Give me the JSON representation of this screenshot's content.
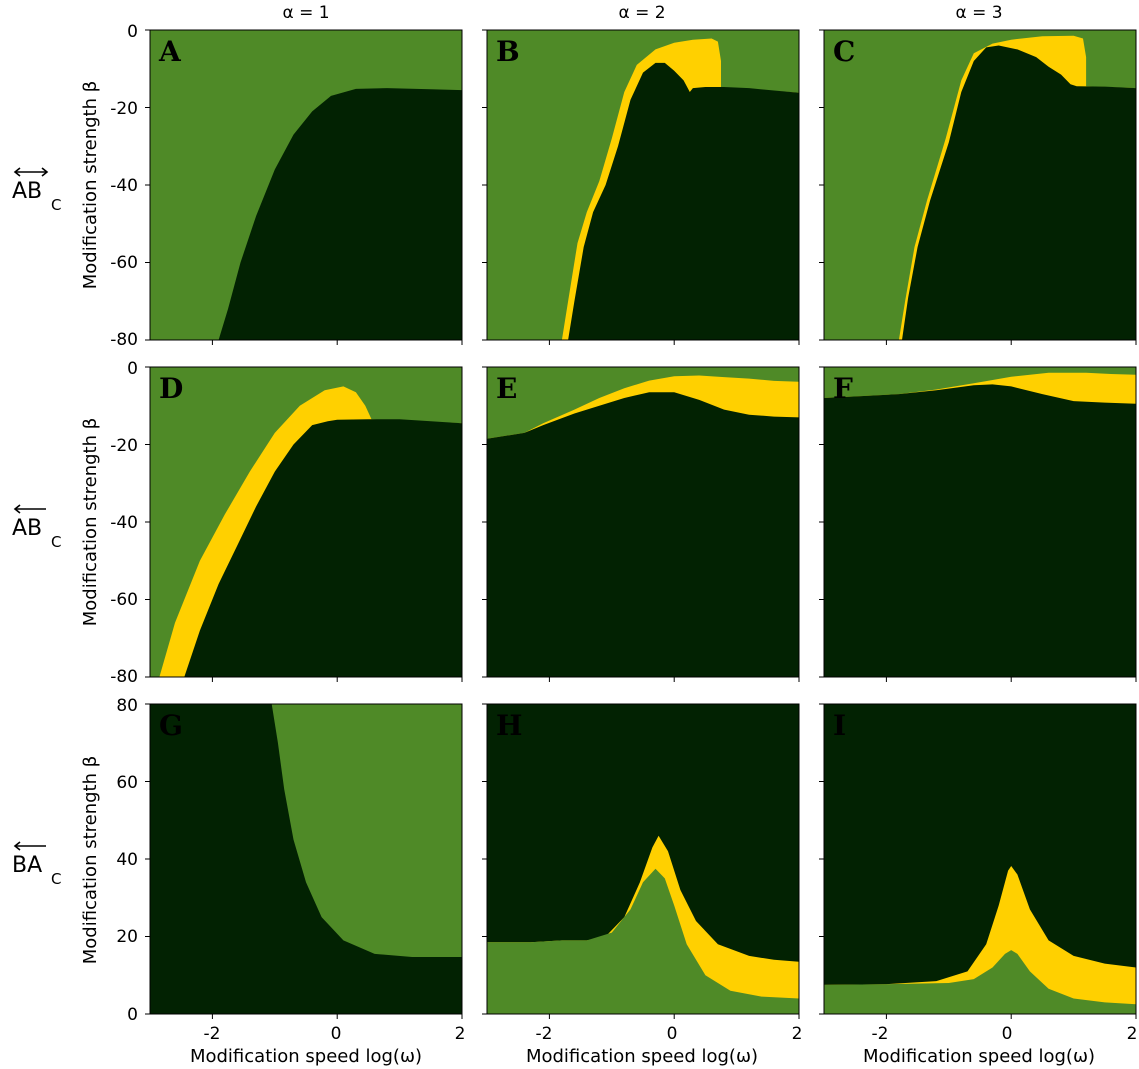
{
  "colors": {
    "light_green": "#4f8a27",
    "dark_green": "#022202",
    "yellow": "#ffd000",
    "background": "#ffffff"
  },
  "column_titles": [
    "α = 1",
    "α = 2",
    "α = 3"
  ],
  "row_labels": [
    {
      "main": "AB",
      "sub": "C",
      "arrow": "bidirectional"
    },
    {
      "main": "AB",
      "sub": "C",
      "arrow": "left"
    },
    {
      "main": "BA",
      "sub": "C",
      "arrow": "left"
    }
  ],
  "ylabel": "Modification strength β",
  "xlabel": "Modification speed log(ω)",
  "x_ticks": [
    "-2",
    "0",
    "2"
  ],
  "y_ticks_rows": [
    [
      "0",
      "-20",
      "-40",
      "-60",
      "-80"
    ],
    [
      "0",
      "-20",
      "-40",
      "-60",
      "-80"
    ],
    [
      "80",
      "60",
      "40",
      "20",
      "0"
    ]
  ],
  "chart_data": {
    "type": "area",
    "layout": "3x3 grid of region maps",
    "xlim": [
      -3,
      2
    ],
    "x_ticks": [
      -2,
      0,
      2
    ],
    "panels": [
      {
        "letter": "A",
        "ylim": [
          -80,
          0
        ],
        "base": "light",
        "lower": [
          [
            -3,
            -80
          ],
          [
            -1.9,
            -80
          ],
          [
            -1.75,
            -72
          ],
          [
            -1.55,
            -60
          ],
          [
            -1.3,
            -48
          ],
          [
            -1,
            -36
          ],
          [
            -0.7,
            -27
          ],
          [
            -0.4,
            -21
          ],
          [
            -0.1,
            -17
          ],
          [
            0.3,
            -15.2
          ],
          [
            0.8,
            -15
          ],
          [
            1.5,
            -15.3
          ],
          [
            2,
            -15.5
          ]
        ],
        "upper": null
      },
      {
        "letter": "B",
        "ylim": [
          -80,
          0
        ],
        "base": "light",
        "lower": [
          [
            -3,
            -80
          ],
          [
            -1.7,
            -80
          ],
          [
            -1.6,
            -70
          ],
          [
            -1.45,
            -56
          ],
          [
            -1.3,
            -47
          ],
          [
            -1.1,
            -40
          ],
          [
            -0.9,
            -30
          ],
          [
            -0.7,
            -18
          ],
          [
            -0.5,
            -11
          ],
          [
            -0.3,
            -8.5
          ],
          [
            -0.15,
            -8.5
          ],
          [
            0,
            -10.5
          ],
          [
            0.15,
            -13
          ],
          [
            0.25,
            -16
          ],
          [
            0.3,
            -15
          ],
          [
            0.5,
            -14.7
          ],
          [
            0.8,
            -14.7
          ],
          [
            1.2,
            -15
          ],
          [
            1.6,
            -15.6
          ],
          [
            2,
            -16.2
          ]
        ],
        "upper": [
          [
            -3,
            -80
          ],
          [
            -1.8,
            -80
          ],
          [
            -1.7,
            -70
          ],
          [
            -1.55,
            -55
          ],
          [
            -1.4,
            -47
          ],
          [
            -1.2,
            -39
          ],
          [
            -1,
            -28
          ],
          [
            -0.8,
            -16
          ],
          [
            -0.6,
            -9
          ],
          [
            -0.3,
            -5
          ],
          [
            0,
            -3.3
          ],
          [
            0.3,
            -2.5
          ],
          [
            0.6,
            -2.2
          ],
          [
            0.7,
            -3
          ],
          [
            0.75,
            -8
          ],
          [
            0.75,
            -14.7
          ],
          [
            2,
            -16.2
          ]
        ]
      },
      {
        "letter": "C",
        "ylim": [
          -80,
          0
        ],
        "base": "light",
        "lower": [
          [
            -3,
            -80
          ],
          [
            -1.75,
            -80
          ],
          [
            -1.65,
            -69
          ],
          [
            -1.5,
            -56
          ],
          [
            -1.3,
            -44
          ],
          [
            -1,
            -29
          ],
          [
            -0.8,
            -16
          ],
          [
            -0.6,
            -8
          ],
          [
            -0.4,
            -4.5
          ],
          [
            -0.2,
            -4
          ],
          [
            0.1,
            -5
          ],
          [
            0.4,
            -7
          ],
          [
            0.6,
            -9.5
          ],
          [
            0.8,
            -11.5
          ],
          [
            0.95,
            -14
          ],
          [
            1.05,
            -14.5
          ],
          [
            1.5,
            -14.6
          ],
          [
            2,
            -15
          ]
        ],
        "upper": [
          [
            -3,
            -80
          ],
          [
            -1.8,
            -80
          ],
          [
            -1.7,
            -70
          ],
          [
            -1.55,
            -56
          ],
          [
            -1.35,
            -44
          ],
          [
            -1.05,
            -28
          ],
          [
            -0.8,
            -13
          ],
          [
            -0.6,
            -6
          ],
          [
            -0.3,
            -3.5
          ],
          [
            0,
            -2.5
          ],
          [
            0.5,
            -1.6
          ],
          [
            1,
            -1.5
          ],
          [
            1.15,
            -2.2
          ],
          [
            1.2,
            -7
          ],
          [
            1.2,
            -14.5
          ],
          [
            2,
            -15
          ]
        ]
      },
      {
        "letter": "D",
        "ylim": [
          -80,
          0
        ],
        "base": "light",
        "lower": [
          [
            -3,
            -80
          ],
          [
            -2.45,
            -80
          ],
          [
            -2.2,
            -68
          ],
          [
            -1.9,
            -56
          ],
          [
            -1.6,
            -46
          ],
          [
            -1.3,
            -36
          ],
          [
            -1,
            -27
          ],
          [
            -0.7,
            -20
          ],
          [
            -0.4,
            -15
          ],
          [
            -0.15,
            -14
          ],
          [
            0,
            -13.6
          ],
          [
            0.5,
            -13.5
          ],
          [
            1,
            -13.5
          ],
          [
            1.5,
            -14
          ],
          [
            2,
            -14.5
          ]
        ],
        "upper": [
          [
            -3,
            -80
          ],
          [
            -2.85,
            -80
          ],
          [
            -2.6,
            -66
          ],
          [
            -2.2,
            -50
          ],
          [
            -1.8,
            -38
          ],
          [
            -1.4,
            -27
          ],
          [
            -1,
            -17
          ],
          [
            -0.6,
            -10
          ],
          [
            -0.2,
            -6
          ],
          [
            0.1,
            -5
          ],
          [
            0.3,
            -6.5
          ],
          [
            0.45,
            -10
          ],
          [
            0.55,
            -13.5
          ],
          [
            2,
            -14.5
          ]
        ]
      },
      {
        "letter": "E",
        "ylim": [
          -80,
          0
        ],
        "base": "light",
        "lower": [
          [
            -3,
            -18.5
          ],
          [
            -2.4,
            -17
          ],
          [
            -2.1,
            -15
          ],
          [
            -1.6,
            -12
          ],
          [
            -1.2,
            -10
          ],
          [
            -0.8,
            -8
          ],
          [
            -0.4,
            -6.5
          ],
          [
            0,
            -6.5
          ],
          [
            0.4,
            -8.5
          ],
          [
            0.8,
            -11
          ],
          [
            1.2,
            -12.3
          ],
          [
            1.6,
            -12.8
          ],
          [
            2,
            -13
          ]
        ],
        "upper": [
          [
            -3,
            -18.5
          ],
          [
            -2.4,
            -17
          ],
          [
            -2.1,
            -14.5
          ],
          [
            -1.6,
            -11
          ],
          [
            -1.2,
            -8
          ],
          [
            -0.8,
            -5.5
          ],
          [
            -0.4,
            -3.5
          ],
          [
            0,
            -2.4
          ],
          [
            0.4,
            -2.2
          ],
          [
            0.8,
            -2.6
          ],
          [
            1.2,
            -3
          ],
          [
            1.6,
            -3.6
          ],
          [
            2,
            -3.8
          ]
        ]
      },
      {
        "letter": "F",
        "ylim": [
          -80,
          0
        ],
        "base": "light",
        "lower": [
          [
            -3,
            -8
          ],
          [
            -2.4,
            -7.5
          ],
          [
            -1.8,
            -7
          ],
          [
            -1.2,
            -6
          ],
          [
            -0.6,
            -4.7
          ],
          [
            -0.3,
            -4.5
          ],
          [
            0,
            -5
          ],
          [
            0.5,
            -7
          ],
          [
            1,
            -8.8
          ],
          [
            1.5,
            -9.2
          ],
          [
            2,
            -9.5
          ]
        ],
        "upper": [
          [
            -3,
            -8
          ],
          [
            -2.4,
            -7.5
          ],
          [
            -1.8,
            -7
          ],
          [
            -1.2,
            -5.8
          ],
          [
            -0.6,
            -4.2
          ],
          [
            0,
            -2.5
          ],
          [
            0.6,
            -1.5
          ],
          [
            1.2,
            -1.5
          ],
          [
            1.6,
            -1.8
          ],
          [
            2,
            -2
          ]
        ]
      },
      {
        "letter": "G",
        "ylim": [
          0,
          80
        ],
        "base": "light",
        "lower": [
          [
            -3,
            80
          ],
          [
            -1.05,
            80
          ],
          [
            -0.95,
            70
          ],
          [
            -0.85,
            58
          ],
          [
            -0.7,
            45
          ],
          [
            -0.5,
            34
          ],
          [
            -0.25,
            25
          ],
          [
            0.1,
            19
          ],
          [
            0.6,
            15.5
          ],
          [
            1.2,
            14.7
          ],
          [
            2,
            14.7
          ]
        ],
        "upper": null
      },
      {
        "letter": "H",
        "ylim": [
          0,
          80
        ],
        "base": "dark",
        "lower": [
          [
            -3,
            0
          ],
          [
            2,
            0
          ]
        ],
        "green_top": [
          [
            -3,
            18.5
          ],
          [
            -2.3,
            18.5
          ],
          [
            -1.8,
            19
          ],
          [
            -1.4,
            19
          ],
          [
            -1,
            21
          ],
          [
            -0.7,
            27
          ],
          [
            -0.5,
            34
          ],
          [
            -0.3,
            37.5
          ],
          [
            -0.15,
            35
          ],
          [
            0,
            28
          ],
          [
            0.2,
            18
          ],
          [
            0.5,
            10
          ],
          [
            0.9,
            6
          ],
          [
            1.4,
            4.5
          ],
          [
            2,
            4
          ]
        ],
        "yellow_top": [
          [
            -3,
            18.5
          ],
          [
            -2.3,
            18.5
          ],
          [
            -1.8,
            19
          ],
          [
            -1.4,
            19
          ],
          [
            -1.1,
            20
          ],
          [
            -0.8,
            25
          ],
          [
            -0.55,
            34
          ],
          [
            -0.35,
            43
          ],
          [
            -0.25,
            46
          ],
          [
            -0.1,
            42
          ],
          [
            0.1,
            32
          ],
          [
            0.35,
            24
          ],
          [
            0.7,
            18
          ],
          [
            1.2,
            15
          ],
          [
            1.6,
            14
          ],
          [
            2,
            13.5
          ]
        ]
      },
      {
        "letter": "I",
        "ylim": [
          0,
          80
        ],
        "base": "dark",
        "lower": [
          [
            -3,
            0
          ],
          [
            2,
            0
          ]
        ],
        "green_top": [
          [
            -3,
            7.5
          ],
          [
            -2,
            7.7
          ],
          [
            -1,
            8
          ],
          [
            -0.6,
            9
          ],
          [
            -0.3,
            12
          ],
          [
            -0.1,
            15.5
          ],
          [
            0,
            16.5
          ],
          [
            0.1,
            15.5
          ],
          [
            0.3,
            11
          ],
          [
            0.6,
            6.5
          ],
          [
            1,
            4
          ],
          [
            1.5,
            3
          ],
          [
            2,
            2.5
          ]
        ],
        "yellow_top": [
          [
            -3,
            7.5
          ],
          [
            -2,
            7.7
          ],
          [
            -1.2,
            8.5
          ],
          [
            -0.7,
            11
          ],
          [
            -0.4,
            18
          ],
          [
            -0.2,
            28
          ],
          [
            -0.05,
            37
          ],
          [
            0,
            38.2
          ],
          [
            0.1,
            36
          ],
          [
            0.3,
            27
          ],
          [
            0.6,
            19
          ],
          [
            1,
            15
          ],
          [
            1.5,
            13
          ],
          [
            2,
            12
          ]
        ]
      }
    ]
  }
}
